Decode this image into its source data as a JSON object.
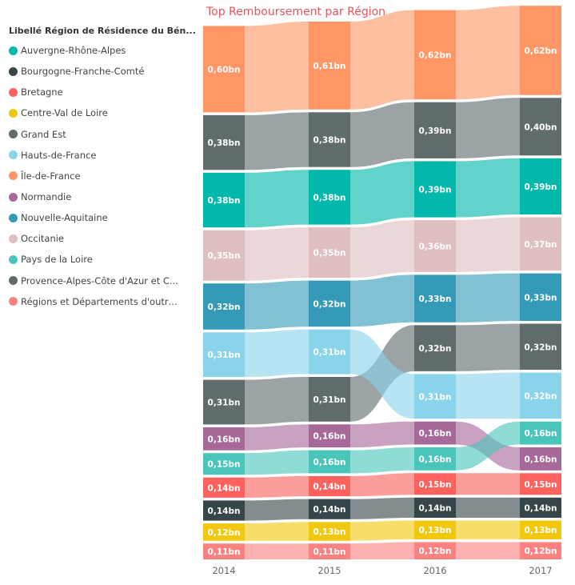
{
  "chart_data": {
    "type": "ribbon",
    "title": "Top Remboursement par Région",
    "legend_title": "Libellé Région de Résidence du Bén...",
    "legend_position": "left",
    "x": [
      "2014",
      "2015",
      "2016",
      "2017"
    ],
    "unit": "bn",
    "series": [
      {
        "name": "Auvergne-Rhône-Alpes",
        "color": "#01b8aa",
        "values": [
          0.38,
          0.38,
          0.39,
          0.39
        ],
        "labels": [
          "0,38bn",
          "0,38bn",
          "0,39bn",
          "0,39bn"
        ]
      },
      {
        "name": "Bourgogne-Franche-Comté",
        "color": "#374649",
        "values": [
          0.14,
          0.14,
          0.14,
          0.14
        ],
        "labels": [
          "0,14bn",
          "0,14bn",
          "0,14bn",
          "0,14bn"
        ]
      },
      {
        "name": "Bretagne",
        "color": "#fd625e",
        "values": [
          0.14,
          0.14,
          0.15,
          0.15
        ],
        "labels": [
          "0,14bn",
          "0,14bn",
          "0,15bn",
          "0,15bn"
        ]
      },
      {
        "name": "Centre-Val de Loire",
        "color": "#f2c80f",
        "values": [
          0.12,
          0.13,
          0.13,
          0.13
        ],
        "labels": [
          "0,12bn",
          "0,13bn",
          "0,13bn",
          "0,13bn"
        ]
      },
      {
        "name": "Grand Est",
        "color": "#5f6b6d",
        "values": [
          0.31,
          0.31,
          0.32,
          0.32
        ],
        "labels": [
          "0,31bn",
          "0,31bn",
          "0,32bn",
          "0,32bn"
        ]
      },
      {
        "name": "Hauts-de-France",
        "color": "#8ad4eb",
        "values": [
          0.31,
          0.31,
          0.31,
          0.32
        ],
        "labels": [
          "0,31bn",
          "0,31bn",
          "0,31bn",
          "0,32bn"
        ]
      },
      {
        "name": "Île-de-France",
        "color": "#fe9666",
        "values": [
          0.6,
          0.61,
          0.62,
          0.62
        ],
        "labels": [
          "0,60bn",
          "0,61bn",
          "0,62bn",
          "0,62bn"
        ]
      },
      {
        "name": "Normandie",
        "color": "#a66999",
        "values": [
          0.16,
          0.16,
          0.16,
          0.16
        ],
        "labels": [
          "0,16bn",
          "0,16bn",
          "0,16bn",
          "0,16bn"
        ]
      },
      {
        "name": "Nouvelle-Aquitaine",
        "color": "#3599b8",
        "values": [
          0.32,
          0.32,
          0.33,
          0.33
        ],
        "labels": [
          "0,32bn",
          "0,32bn",
          "0,33bn",
          "0,33bn"
        ]
      },
      {
        "name": "Occitanie",
        "color": "#dfbfbf",
        "values": [
          0.35,
          0.35,
          0.36,
          0.37
        ],
        "labels": [
          "0,35bn",
          "0,35bn",
          "0,36bn",
          "0,37bn"
        ]
      },
      {
        "name": "Pays de la Loire",
        "color": "#4ac5bb",
        "values": [
          0.15,
          0.16,
          0.16,
          0.16
        ],
        "labels": [
          "0,15bn",
          "0,16bn",
          "0,16bn",
          "0,16bn"
        ]
      },
      {
        "name": "Provence-Alpes-Côte d'Azur et C...",
        "color": "#5f6b6d",
        "values": [
          0.38,
          0.38,
          0.39,
          0.4
        ],
        "labels": [
          "0,38bn",
          "0,38bn",
          "0,39bn",
          "0,40bn"
        ]
      },
      {
        "name": "Régions et Départements d'outre...",
        "color": "#fb8281",
        "values": [
          0.11,
          0.11,
          0.12,
          0.12
        ],
        "labels": [
          "0,11bn",
          "0,11bn",
          "0,12bn",
          "0,12bn"
        ]
      }
    ],
    "stack_order_top_to_bottom": [
      [
        "Île-de-France",
        "Provence-Alpes-Côte d'Azur et C...",
        "Auvergne-Rhône-Alpes",
        "Occitanie",
        "Nouvelle-Aquitaine",
        "Hauts-de-France",
        "Grand Est",
        "Normandie",
        "Pays de la Loire",
        "Bretagne",
        "Bourgogne-Franche-Comté",
        "Centre-Val de Loire",
        "Régions et Départements d'outre..."
      ],
      [
        "Île-de-France",
        "Provence-Alpes-Côte d'Azur et C...",
        "Auvergne-Rhône-Alpes",
        "Occitanie",
        "Nouvelle-Aquitaine",
        "Hauts-de-France",
        "Grand Est",
        "Normandie",
        "Pays de la Loire",
        "Bretagne",
        "Bourgogne-Franche-Comté",
        "Centre-Val de Loire",
        "Régions et Départements d'outre..."
      ],
      [
        "Île-de-France",
        "Provence-Alpes-Côte d'Azur et C...",
        "Auvergne-Rhône-Alpes",
        "Occitanie",
        "Nouvelle-Aquitaine",
        "Grand Est",
        "Hauts-de-France",
        "Normandie",
        "Pays de la Loire",
        "Bretagne",
        "Bourgogne-Franche-Comté",
        "Centre-Val de Loire",
        "Régions et Départements d'outre..."
      ],
      [
        "Île-de-France",
        "Provence-Alpes-Côte d'Azur et C...",
        "Auvergne-Rhône-Alpes",
        "Occitanie",
        "Nouvelle-Aquitaine",
        "Grand Est",
        "Hauts-de-France",
        "Pays de la Loire",
        "Normandie",
        "Bretagne",
        "Bourgogne-Franche-Comté",
        "Centre-Val de Loire",
        "Régions et Départements d'outre..."
      ]
    ]
  }
}
